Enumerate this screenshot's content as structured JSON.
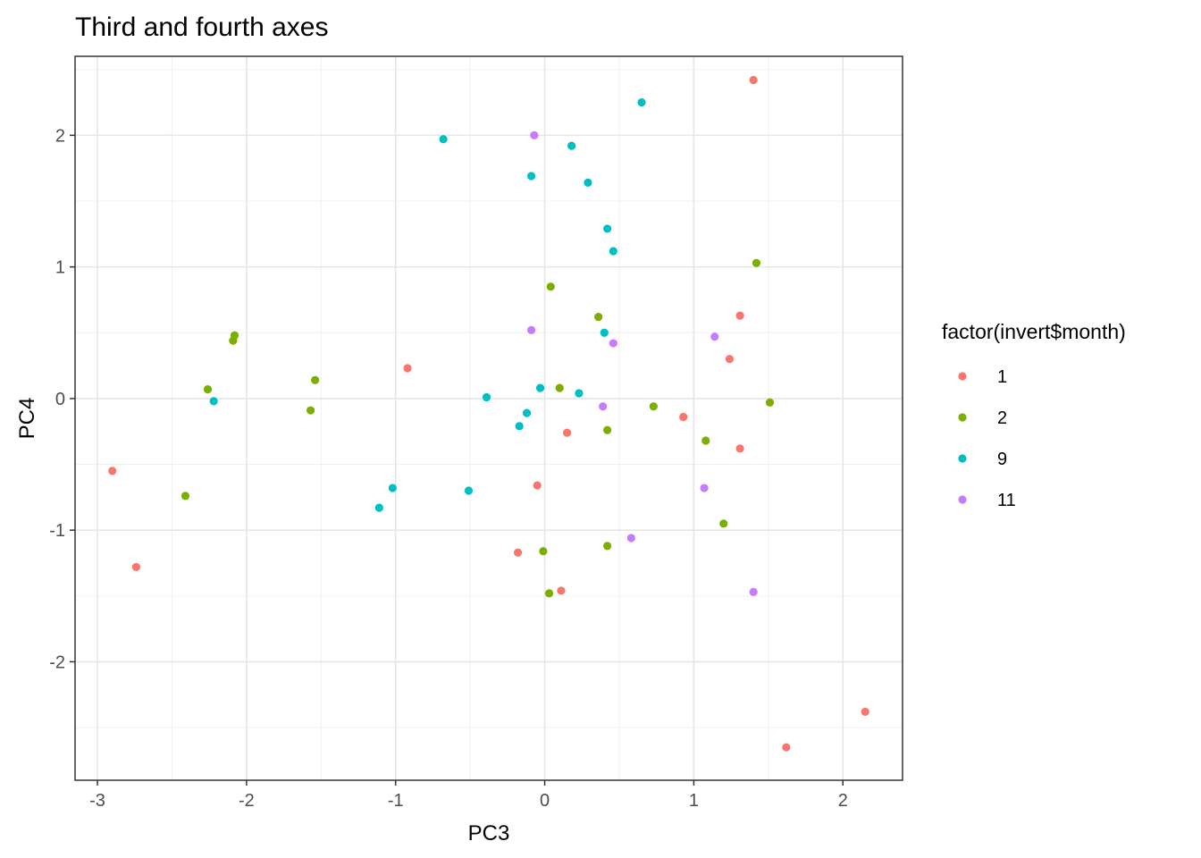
{
  "chart_data": {
    "type": "scatter",
    "title": "Third and fourth axes",
    "xlabel": "PC3",
    "ylabel": "PC4",
    "xlim": [
      -3.15,
      2.4
    ],
    "ylim": [
      -2.9,
      2.6
    ],
    "x_ticks": [
      -3,
      -2,
      -1,
      0,
      1,
      2
    ],
    "x_tick_labels": [
      "-3",
      "-2",
      "-1",
      "0",
      "1",
      "2"
    ],
    "y_ticks": [
      -2,
      -1,
      0,
      1,
      2
    ],
    "y_tick_labels": [
      "-2",
      "-1",
      "0",
      "1",
      "2"
    ],
    "grid": true,
    "legend": {
      "title": "factor(invert$month)",
      "position": "right"
    },
    "series": [
      {
        "name": "1",
        "color": "#F8766D",
        "points": [
          [
            1.4,
            2.42
          ],
          [
            1.31,
            0.63
          ],
          [
            1.24,
            0.3
          ],
          [
            -0.92,
            0.23
          ],
          [
            0.93,
            -0.14
          ],
          [
            0.15,
            -0.26
          ],
          [
            1.31,
            -0.38
          ],
          [
            -2.9,
            -0.55
          ],
          [
            -0.05,
            -0.66
          ],
          [
            -2.74,
            -1.28
          ],
          [
            -0.18,
            -1.17
          ],
          [
            0.11,
            -1.46
          ],
          [
            2.15,
            -2.38
          ],
          [
            1.62,
            -2.65
          ]
        ]
      },
      {
        "name": "2",
        "color": "#7CAE00",
        "points": [
          [
            1.42,
            1.03
          ],
          [
            0.04,
            0.85
          ],
          [
            0.36,
            0.62
          ],
          [
            -2.08,
            0.48
          ],
          [
            -2.09,
            0.44
          ],
          [
            -1.54,
            0.14
          ],
          [
            -2.26,
            0.07
          ],
          [
            0.1,
            0.08
          ],
          [
            -1.57,
            -0.09
          ],
          [
            1.51,
            -0.03
          ],
          [
            0.73,
            -0.06
          ],
          [
            0.42,
            -0.24
          ],
          [
            1.08,
            -0.32
          ],
          [
            -2.41,
            -0.74
          ],
          [
            1.2,
            -0.95
          ],
          [
            -0.01,
            -1.16
          ],
          [
            0.42,
            -1.12
          ],
          [
            0.03,
            -1.48
          ]
        ]
      },
      {
        "name": "9",
        "color": "#00BFC4",
        "points": [
          [
            0.65,
            2.25
          ],
          [
            -0.68,
            1.97
          ],
          [
            0.18,
            1.92
          ],
          [
            -0.09,
            1.69
          ],
          [
            0.29,
            1.64
          ],
          [
            0.42,
            1.29
          ],
          [
            0.46,
            1.12
          ],
          [
            0.4,
            0.5
          ],
          [
            -0.03,
            0.08
          ],
          [
            0.23,
            0.04
          ],
          [
            -0.39,
            0.01
          ],
          [
            -2.22,
            -0.02
          ],
          [
            -0.12,
            -0.11
          ],
          [
            -0.17,
            -0.21
          ],
          [
            -1.02,
            -0.68
          ],
          [
            -0.51,
            -0.7
          ],
          [
            -1.11,
            -0.83
          ]
        ]
      },
      {
        "name": "11",
        "color": "#C77CFF",
        "points": [
          [
            -0.07,
            2.0
          ],
          [
            -0.09,
            0.52
          ],
          [
            1.14,
            0.47
          ],
          [
            0.46,
            0.42
          ],
          [
            0.39,
            -0.06
          ],
          [
            1.07,
            -0.68
          ],
          [
            0.58,
            -1.06
          ],
          [
            1.4,
            -1.47
          ]
        ]
      }
    ]
  }
}
